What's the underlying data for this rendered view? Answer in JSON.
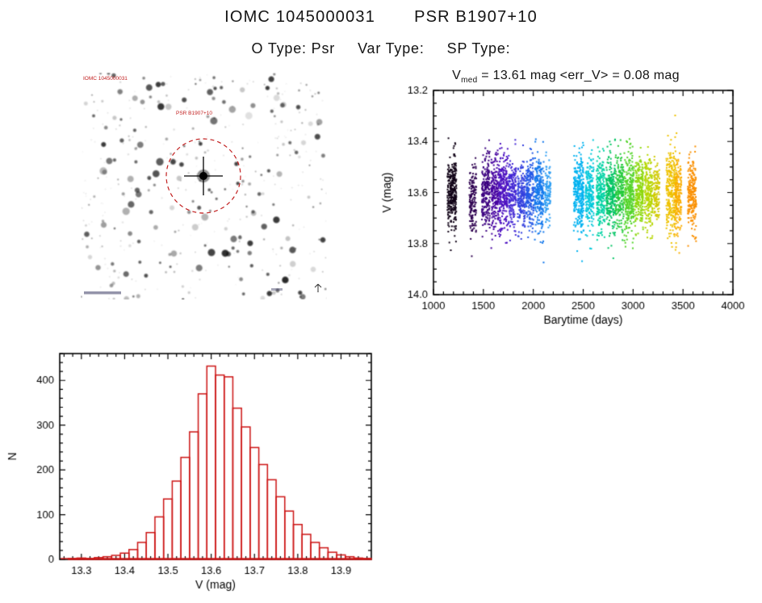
{
  "header": {
    "title_left": "IOMC 1045000031",
    "title_right": "PSR B1907+10",
    "otype": "O Type: Psr",
    "vartype": "Var Type:",
    "sptype": "SP Type:"
  },
  "lc_title": {
    "v": "V",
    "sub": "med",
    "rest": " = 13.61 mag <err_V> = 0.08 mag"
  },
  "finding_chart": {
    "label_top_left": "IOMC 1045000031",
    "label_target": "PSR B1907+10",
    "circle_color": "#c22020"
  },
  "colors": {
    "axis": "#000000",
    "hist_bar": "#cc1414"
  },
  "chart_data": [
    {
      "type": "scatter",
      "title": "V_med = 13.61 mag <err_V> = 0.08 mag",
      "v_med_mag": 13.61,
      "err_v_mag": 0.08,
      "xlabel": "Barytime (days)",
      "ylabel": "V (mag)",
      "xlim": [
        1000,
        4000
      ],
      "ylim_top": 13.2,
      "ylim_bottom": 14.0,
      "xticks": [
        1000,
        1500,
        2000,
        2500,
        3000,
        3500,
        4000
      ],
      "yticks": [
        13.2,
        13.4,
        13.6,
        13.8,
        14.0
      ],
      "x_minor_step": 100,
      "y_minor_step": 0.05,
      "clusters": [
        {
          "x": 1185,
          "w": 45,
          "n": 300,
          "m": 13.6,
          "s": 0.075,
          "c": "#100016"
        },
        {
          "x": 1395,
          "w": 35,
          "n": 150,
          "m": 13.63,
          "s": 0.065,
          "c": "#2e0050"
        },
        {
          "x": 1525,
          "w": 40,
          "n": 210,
          "m": 13.6,
          "s": 0.07,
          "c": "#3c0080"
        },
        {
          "x": 1615,
          "w": 38,
          "n": 190,
          "m": 13.6,
          "s": 0.07,
          "c": "#4600a0"
        },
        {
          "x": 1700,
          "w": 45,
          "n": 250,
          "m": 13.6,
          "s": 0.075,
          "c": "#4c10c0"
        },
        {
          "x": 1790,
          "w": 38,
          "n": 190,
          "m": 13.61,
          "s": 0.07,
          "c": "#4428d4"
        },
        {
          "x": 1880,
          "w": 38,
          "n": 180,
          "m": 13.61,
          "s": 0.068,
          "c": "#3440de"
        },
        {
          "x": 1965,
          "w": 40,
          "n": 200,
          "m": 13.6,
          "s": 0.07,
          "c": "#2458e6"
        },
        {
          "x": 2060,
          "w": 45,
          "n": 250,
          "m": 13.61,
          "s": 0.075,
          "c": "#1478ec"
        },
        {
          "x": 2145,
          "w": 30,
          "n": 110,
          "m": 13.6,
          "s": 0.06,
          "c": "#2e9ef2"
        },
        {
          "x": 2455,
          "w": 50,
          "n": 280,
          "m": 13.6,
          "s": 0.08,
          "c": "#00b2f0"
        },
        {
          "x": 2565,
          "w": 40,
          "n": 200,
          "m": 13.61,
          "s": 0.07,
          "c": "#00c8da"
        },
        {
          "x": 2675,
          "w": 42,
          "n": 220,
          "m": 13.6,
          "s": 0.072,
          "c": "#00d2a4"
        },
        {
          "x": 2775,
          "w": 45,
          "n": 250,
          "m": 13.61,
          "s": 0.075,
          "c": "#00c464"
        },
        {
          "x": 2865,
          "w": 40,
          "n": 200,
          "m": 13.6,
          "s": 0.07,
          "c": "#24ca3c"
        },
        {
          "x": 2960,
          "w": 48,
          "n": 280,
          "m": 13.61,
          "s": 0.08,
          "c": "#54d42a"
        },
        {
          "x": 3060,
          "w": 42,
          "n": 220,
          "m": 13.6,
          "s": 0.07,
          "c": "#8cd80c"
        },
        {
          "x": 3155,
          "w": 40,
          "n": 200,
          "m": 13.6,
          "s": 0.07,
          "c": "#b6d600"
        },
        {
          "x": 3235,
          "w": 30,
          "n": 110,
          "m": 13.6,
          "s": 0.06,
          "c": "#d0ca00"
        },
        {
          "x": 3385,
          "w": 52,
          "n": 300,
          "m": 13.59,
          "s": 0.085,
          "c": "#eec200"
        },
        {
          "x": 3450,
          "w": 35,
          "n": 170,
          "m": 13.61,
          "s": 0.07,
          "c": "#faae00"
        },
        {
          "x": 3590,
          "w": 42,
          "n": 210,
          "m": 13.62,
          "s": 0.07,
          "c": "#fa9000"
        }
      ]
    },
    {
      "type": "bar",
      "title": "",
      "xlabel": "V (mag)",
      "ylabel": "N",
      "xlim": [
        13.25,
        13.97
      ],
      "ylim": [
        0,
        460
      ],
      "xticks": [
        13.3,
        13.4,
        13.5,
        13.6,
        13.7,
        13.8,
        13.9
      ],
      "yticks": [
        0,
        100,
        200,
        300,
        400
      ],
      "x_minor_step": 0.02,
      "y_minor_step": 20,
      "bin_start": 13.27,
      "bin_width": 0.02,
      "values": [
        2,
        3,
        2,
        4,
        6,
        9,
        14,
        22,
        38,
        60,
        95,
        135,
        175,
        228,
        285,
        370,
        432,
        412,
        408,
        338,
        296,
        250,
        212,
        178,
        140,
        108,
        78,
        56,
        38,
        26,
        16,
        10,
        6,
        3,
        2
      ],
      "bar_color": "#cc1414"
    }
  ]
}
